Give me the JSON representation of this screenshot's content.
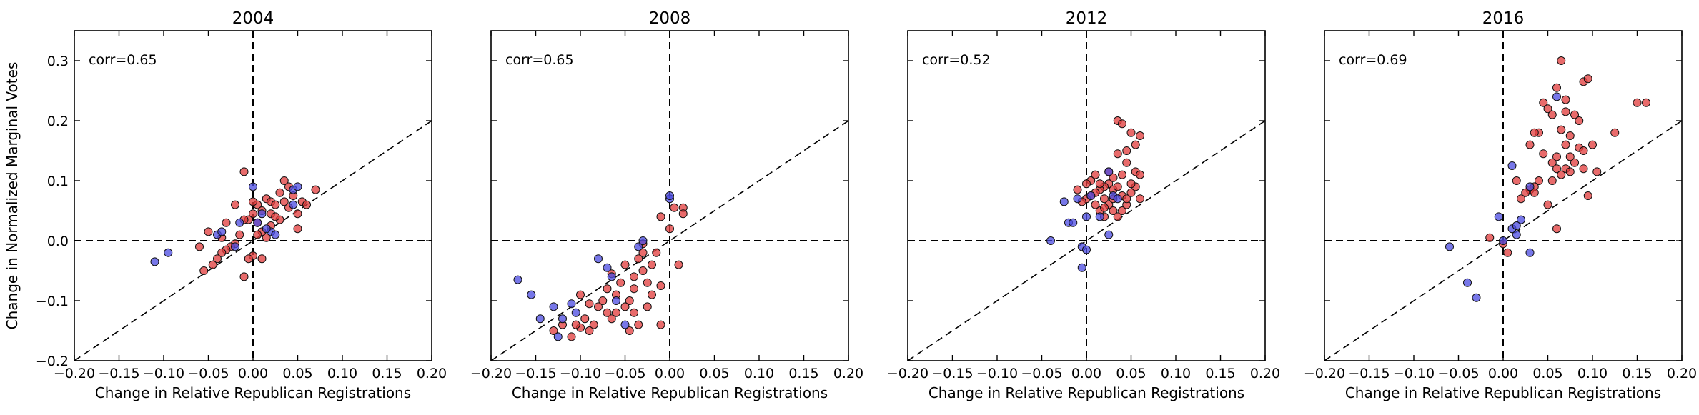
{
  "figure": {
    "ylabel": "Change in Normalized Marginal Votes",
    "xlabel": "Change in Relative Republican Registrations",
    "colors": {
      "red": "#e03a3a",
      "blue": "#4a4ae0"
    }
  },
  "chart_data": [
    {
      "type": "scatter",
      "title": "2004",
      "annotation": "corr=0.65",
      "xlabel": "Change in Relative Republican Registrations",
      "ylabel": "Change in Normalized Marginal Votes",
      "xlim": [
        -0.2,
        0.2
      ],
      "ylim": [
        -0.2,
        0.35
      ],
      "xticks": [
        "−0.20",
        "−0.15",
        "−0.10",
        "−0.05",
        "0.00",
        "0.05",
        "0.10",
        "0.15",
        "0.20"
      ],
      "yticks": [
        "−0.2",
        "−0.1",
        "0.0",
        "0.1",
        "0.2",
        "0.3"
      ],
      "series": [
        {
          "color": "red",
          "points": [
            [
              -0.01,
              0.115
            ],
            [
              -0.03,
              0.03
            ],
            [
              -0.02,
              0.06
            ],
            [
              0.0,
              0.045
            ],
            [
              0.005,
              0.06
            ],
            [
              0.01,
              0.05
            ],
            [
              0.015,
              0.07
            ],
            [
              0.02,
              0.065
            ],
            [
              0.025,
              0.06
            ],
            [
              0.03,
              0.08
            ],
            [
              0.035,
              0.065
            ],
            [
              0.04,
              0.055
            ],
            [
              0.045,
              0.075
            ],
            [
              0.055,
              0.065
            ],
            [
              0.07,
              0.085
            ],
            [
              0.035,
              0.1
            ],
            [
              0.05,
              0.045
            ],
            [
              0.05,
              0.02
            ],
            [
              0.03,
              0.035
            ],
            [
              0.02,
              0.025
            ],
            [
              0.015,
              0.005
            ],
            [
              0.01,
              0.015
            ],
            [
              0.005,
              0.01
            ],
            [
              0.0,
              -0.025
            ],
            [
              -0.005,
              -0.03
            ],
            [
              0.01,
              -0.03
            ],
            [
              -0.01,
              -0.06
            ],
            [
              -0.015,
              0.01
            ],
            [
              -0.02,
              -0.005
            ],
            [
              -0.025,
              -0.01
            ],
            [
              -0.03,
              -0.015
            ],
            [
              -0.035,
              -0.02
            ],
            [
              -0.04,
              -0.03
            ],
            [
              -0.045,
              -0.04
            ],
            [
              -0.055,
              -0.05
            ],
            [
              -0.06,
              -0.01
            ],
            [
              -0.05,
              0.015
            ],
            [
              -0.035,
              0.005
            ],
            [
              -0.005,
              0.035
            ],
            [
              0.0,
              0.065
            ],
            [
              0.02,
              0.045
            ],
            [
              0.025,
              0.04
            ],
            [
              0.04,
              0.09
            ],
            [
              0.06,
              0.06
            ],
            [
              -0.01,
              0.035
            ],
            [
              0.005,
              0.03
            ]
          ]
        },
        {
          "color": "blue",
          "points": [
            [
              -0.11,
              -0.035
            ],
            [
              -0.095,
              -0.02
            ],
            [
              -0.04,
              0.01
            ],
            [
              -0.035,
              0.015
            ],
            [
              -0.02,
              -0.01
            ],
            [
              0.0,
              0.09
            ],
            [
              0.005,
              0.03
            ],
            [
              0.01,
              0.045
            ],
            [
              0.02,
              0.015
            ],
            [
              0.025,
              0.01
            ],
            [
              0.045,
              0.085
            ],
            [
              0.05,
              0.09
            ],
            [
              0.045,
              0.06
            ],
            [
              -0.015,
              0.03
            ],
            [
              0.015,
              0.02
            ]
          ]
        }
      ]
    },
    {
      "type": "scatter",
      "title": "2008",
      "annotation": "corr=0.65",
      "xlabel": "Change in Relative Republican Registrations",
      "xlim": [
        -0.2,
        0.2
      ],
      "ylim": [
        -0.2,
        0.35
      ],
      "xticks": [
        "−0.20",
        "−0.15",
        "−0.10",
        "−0.05",
        "0.00",
        "0.05",
        "0.10",
        "0.15",
        "0.20"
      ],
      "series": [
        {
          "color": "red",
          "points": [
            [
              0.005,
              0.055
            ],
            [
              0.015,
              0.055
            ],
            [
              0.015,
              0.045
            ],
            [
              -0.01,
              0.04
            ],
            [
              0.0,
              0.02
            ],
            [
              0.01,
              -0.04
            ],
            [
              -0.01,
              -0.075
            ],
            [
              -0.01,
              -0.14
            ],
            [
              -0.02,
              -0.09
            ],
            [
              -0.025,
              -0.07
            ],
            [
              -0.03,
              -0.05
            ],
            [
              -0.03,
              -0.02
            ],
            [
              -0.035,
              -0.03
            ],
            [
              -0.04,
              -0.06
            ],
            [
              -0.04,
              -0.08
            ],
            [
              -0.045,
              -0.1
            ],
            [
              -0.05,
              -0.11
            ],
            [
              -0.055,
              -0.07
            ],
            [
              -0.06,
              -0.09
            ],
            [
              -0.06,
              -0.12
            ],
            [
              -0.065,
              -0.13
            ],
            [
              -0.07,
              -0.08
            ],
            [
              -0.075,
              -0.1
            ],
            [
              -0.08,
              -0.11
            ],
            [
              -0.085,
              -0.14
            ],
            [
              -0.09,
              -0.15
            ],
            [
              -0.095,
              -0.13
            ],
            [
              -0.1,
              -0.145
            ],
            [
              -0.105,
              -0.14
            ],
            [
              -0.11,
              -0.16
            ],
            [
              -0.12,
              -0.14
            ],
            [
              -0.13,
              -0.15
            ],
            [
              -0.045,
              -0.15
            ],
            [
              -0.04,
              -0.12
            ],
            [
              -0.02,
              -0.04
            ],
            [
              -0.015,
              -0.02
            ],
            [
              -0.03,
              -0.005
            ],
            [
              -0.05,
              -0.04
            ],
            [
              -0.07,
              -0.12
            ],
            [
              -0.065,
              -0.055
            ],
            [
              -0.035,
              -0.14
            ],
            [
              -0.025,
              -0.11
            ],
            [
              -0.09,
              -0.105
            ],
            [
              -0.1,
              -0.09
            ]
          ]
        },
        {
          "color": "blue",
          "points": [
            [
              -0.17,
              -0.065
            ],
            [
              -0.155,
              -0.09
            ],
            [
              -0.145,
              -0.13
            ],
            [
              -0.13,
              -0.11
            ],
            [
              -0.125,
              -0.16
            ],
            [
              -0.12,
              -0.13
            ],
            [
              -0.08,
              -0.03
            ],
            [
              -0.07,
              -0.045
            ],
            [
              -0.065,
              -0.06
            ],
            [
              -0.05,
              -0.14
            ],
            [
              -0.035,
              -0.01
            ],
            [
              -0.03,
              0.0
            ],
            [
              0.0,
              0.07
            ],
            [
              0.0,
              0.075
            ],
            [
              -0.11,
              -0.105
            ],
            [
              -0.105,
              -0.12
            ],
            [
              -0.06,
              -0.1
            ]
          ]
        }
      ]
    },
    {
      "type": "scatter",
      "title": "2012",
      "annotation": "corr=0.52",
      "xlabel": "Change in Relative Republican Registrations",
      "xlim": [
        -0.2,
        0.2
      ],
      "ylim": [
        -0.2,
        0.35
      ],
      "xticks": [
        "−0.20",
        "−0.15",
        "−0.10",
        "−0.05",
        "0.00",
        "0.05",
        "0.10",
        "0.15",
        "0.20"
      ],
      "series": [
        {
          "color": "red",
          "points": [
            [
              0.035,
              0.2
            ],
            [
              0.04,
              0.195
            ],
            [
              0.05,
              0.18
            ],
            [
              0.06,
              0.175
            ],
            [
              0.055,
              0.16
            ],
            [
              0.045,
              0.15
            ],
            [
              0.035,
              0.145
            ],
            [
              0.045,
              0.13
            ],
            [
              0.04,
              0.11
            ],
            [
              0.055,
              0.115
            ],
            [
              0.03,
              0.105
            ],
            [
              0.025,
              0.095
            ],
            [
              0.02,
              0.09
            ],
            [
              0.015,
              0.085
            ],
            [
              0.01,
              0.08
            ],
            [
              0.005,
              0.075
            ],
            [
              0.0,
              0.07
            ],
            [
              -0.005,
              0.065
            ],
            [
              -0.01,
              0.085
            ],
            [
              0.005,
              0.1
            ],
            [
              0.015,
              0.095
            ],
            [
              0.02,
              0.07
            ],
            [
              0.025,
              0.06
            ],
            [
              0.03,
              0.05
            ],
            [
              0.035,
              0.04
            ],
            [
              0.04,
              0.05
            ],
            [
              0.045,
              0.06
            ],
            [
              0.05,
              0.08
            ],
            [
              0.055,
              0.09
            ],
            [
              0.06,
              0.07
            ],
            [
              0.02,
              0.04
            ],
            [
              0.015,
              0.05
            ],
            [
              0.01,
              0.11
            ],
            [
              0.025,
              0.115
            ],
            [
              0.03,
              0.085
            ],
            [
              0.035,
              0.09
            ],
            [
              0.04,
              0.075
            ],
            [
              0.045,
              0.07
            ],
            [
              0.05,
              0.095
            ],
            [
              0.0,
              0.095
            ],
            [
              0.03,
              0.07
            ],
            [
              0.02,
              0.055
            ],
            [
              0.06,
              0.11
            ],
            [
              0.01,
              0.06
            ]
          ]
        },
        {
          "color": "blue",
          "points": [
            [
              -0.04,
              0.0
            ],
            [
              -0.025,
              0.065
            ],
            [
              -0.02,
              0.03
            ],
            [
              -0.015,
              0.03
            ],
            [
              -0.01,
              0.07
            ],
            [
              -0.005,
              -0.01
            ],
            [
              -0.005,
              -0.045
            ],
            [
              0.0,
              -0.015
            ],
            [
              0.005,
              0.075
            ],
            [
              0.015,
              0.04
            ],
            [
              0.025,
              0.01
            ],
            [
              0.025,
              0.115
            ],
            [
              0.03,
              0.075
            ],
            [
              0.035,
              0.07
            ],
            [
              0.0,
              0.04
            ]
          ]
        }
      ]
    },
    {
      "type": "scatter",
      "title": "2016",
      "annotation": "corr=0.69",
      "xlabel": "Change in Relative Republican Registrations",
      "xlim": [
        -0.2,
        0.2
      ],
      "ylim": [
        -0.2,
        0.35
      ],
      "xticks": [
        "−0.20",
        "−0.15",
        "−0.10",
        "−0.05",
        "0.00",
        "0.05",
        "0.10",
        "0.15",
        "0.20"
      ],
      "series": [
        {
          "color": "red",
          "points": [
            [
              0.065,
              0.3
            ],
            [
              0.09,
              0.265
            ],
            [
              0.095,
              0.27
            ],
            [
              0.06,
              0.255
            ],
            [
              0.045,
              0.23
            ],
            [
              0.07,
              0.235
            ],
            [
              0.05,
              0.22
            ],
            [
              0.055,
              0.21
            ],
            [
              0.07,
              0.215
            ],
            [
              0.08,
              0.21
            ],
            [
              0.085,
              0.2
            ],
            [
              0.065,
              0.185
            ],
            [
              0.075,
              0.175
            ],
            [
              0.07,
              0.16
            ],
            [
              0.085,
              0.155
            ],
            [
              0.09,
              0.15
            ],
            [
              0.1,
              0.16
            ],
            [
              0.06,
              0.14
            ],
            [
              0.055,
              0.13
            ],
            [
              0.06,
              0.12
            ],
            [
              0.07,
              0.12
            ],
            [
              0.075,
              0.115
            ],
            [
              0.065,
              0.11
            ],
            [
              0.08,
              0.13
            ],
            [
              0.09,
              0.12
            ],
            [
              0.105,
              0.115
            ],
            [
              0.04,
              0.18
            ],
            [
              0.035,
              0.18
            ],
            [
              0.045,
              0.145
            ],
            [
              0.04,
              0.1
            ],
            [
              0.035,
              0.09
            ],
            [
              0.03,
              0.085
            ],
            [
              0.025,
              0.08
            ],
            [
              0.035,
              0.08
            ],
            [
              0.055,
              0.1
            ],
            [
              0.05,
              0.06
            ],
            [
              0.06,
              0.02
            ],
            [
              0.095,
              0.075
            ],
            [
              0.15,
              0.23
            ],
            [
              0.16,
              0.23
            ],
            [
              0.125,
              0.18
            ],
            [
              0.02,
              0.07
            ],
            [
              0.015,
              0.1
            ],
            [
              -0.015,
              0.005
            ],
            [
              0.0,
              -0.005
            ],
            [
              0.005,
              -0.02
            ],
            [
              0.03,
              0.16
            ],
            [
              0.075,
              0.14
            ]
          ]
        },
        {
          "color": "blue",
          "points": [
            [
              -0.06,
              -0.01
            ],
            [
              -0.04,
              -0.07
            ],
            [
              -0.03,
              -0.095
            ],
            [
              -0.005,
              0.04
            ],
            [
              0.0,
              0.0
            ],
            [
              0.01,
              0.125
            ],
            [
              0.015,
              0.01
            ],
            [
              0.02,
              0.035
            ],
            [
              0.03,
              -0.02
            ],
            [
              0.06,
              0.24
            ],
            [
              0.03,
              0.09
            ],
            [
              0.01,
              0.02
            ],
            [
              0.015,
              0.025
            ]
          ]
        }
      ]
    }
  ]
}
